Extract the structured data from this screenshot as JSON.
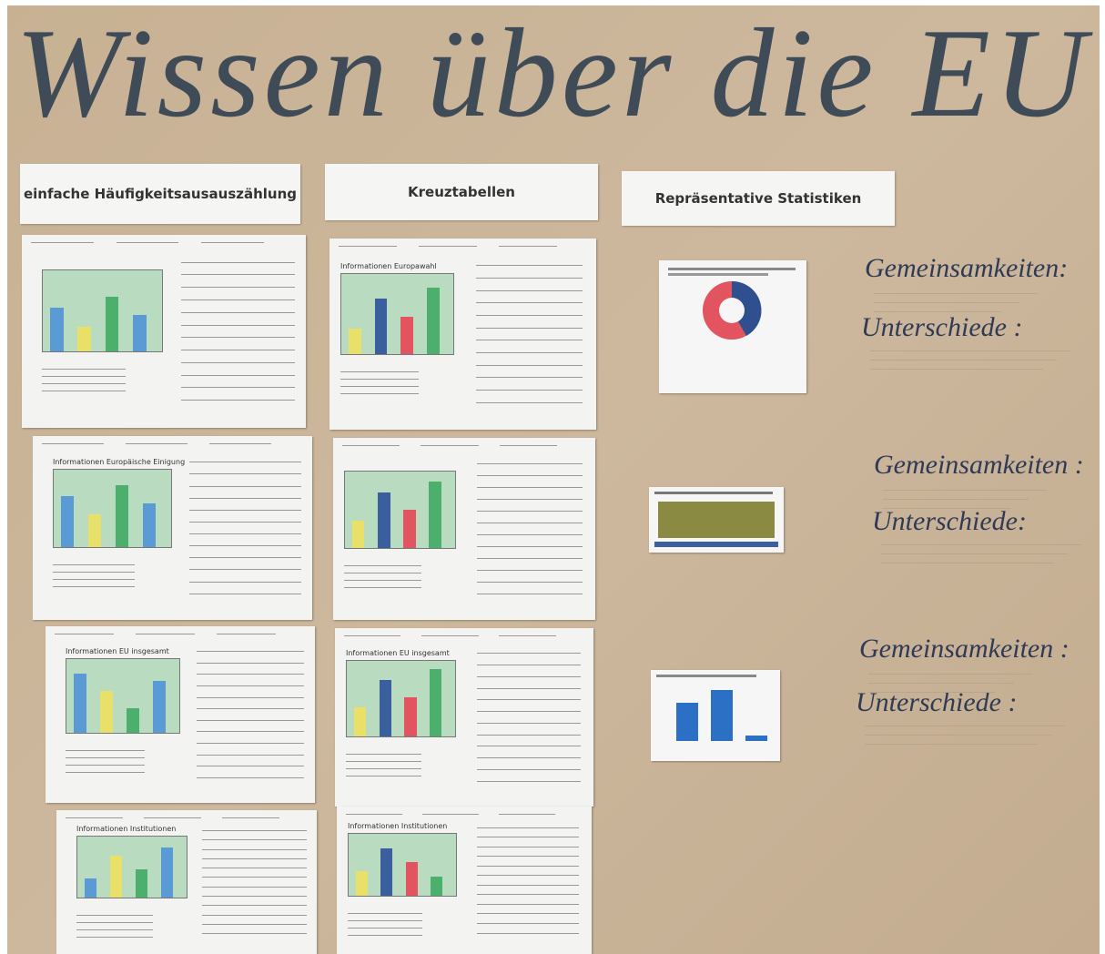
{
  "poster": {
    "title": "Wissen über die EU",
    "columns": [
      {
        "header": "einfache Häufigkeitsausauszählung",
        "sheets": [
          "Informationen Europäische Einigung",
          "Informationen EU insgesamt",
          "Informationen Institutionen"
        ]
      },
      {
        "header": "Kreuztabellen",
        "sheets": [
          "Informationen Europawahl",
          "Informationen EU insgesamt",
          "Informationen Institutionen"
        ]
      },
      {
        "header": "Repräsentative Statistiken"
      }
    ],
    "notes": [
      {
        "similarities": "Gemeinsamkeiten:",
        "differences": "Unterschiede :"
      },
      {
        "similarities": "Gemeinsamkeiten :",
        "differences": "Unterschiede:"
      },
      {
        "similarities": "Gemeinsamkeiten :",
        "differences": "Unterschiede :"
      }
    ]
  }
}
